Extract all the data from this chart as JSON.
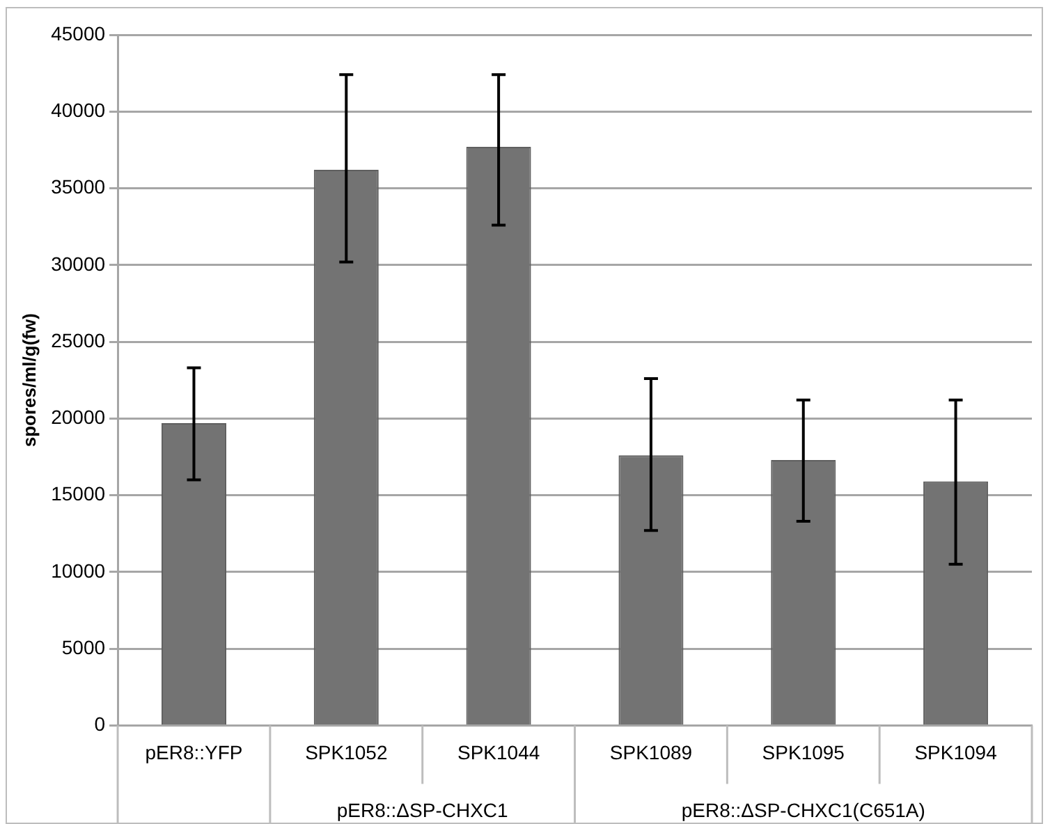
{
  "chart_data": {
    "type": "bar",
    "ylabel": "spores/ml/g(fw)",
    "categories": [
      "pER8::YFP",
      "SPK1052",
      "SPK1044",
      "SPK1089",
      "SPK1095",
      "SPK1094"
    ],
    "values": [
      19700,
      36200,
      37700,
      17600,
      17300,
      15900
    ],
    "errors": [
      [
        16000,
        23300
      ],
      [
        30200,
        42400
      ],
      [
        32600,
        42400
      ],
      [
        12700,
        22600
      ],
      [
        13300,
        21200
      ],
      [
        10500,
        21200
      ]
    ],
    "color": "#737373",
    "ylim": [
      0,
      45000
    ],
    "yticks": [
      0,
      5000,
      10000,
      15000,
      20000,
      25000,
      30000,
      35000,
      40000,
      45000
    ],
    "grid": "y",
    "annotations": [
      "pER8::ΔSP-CHXC1",
      "pER8::ΔSP-CHXC1(C651A)"
    ]
  }
}
